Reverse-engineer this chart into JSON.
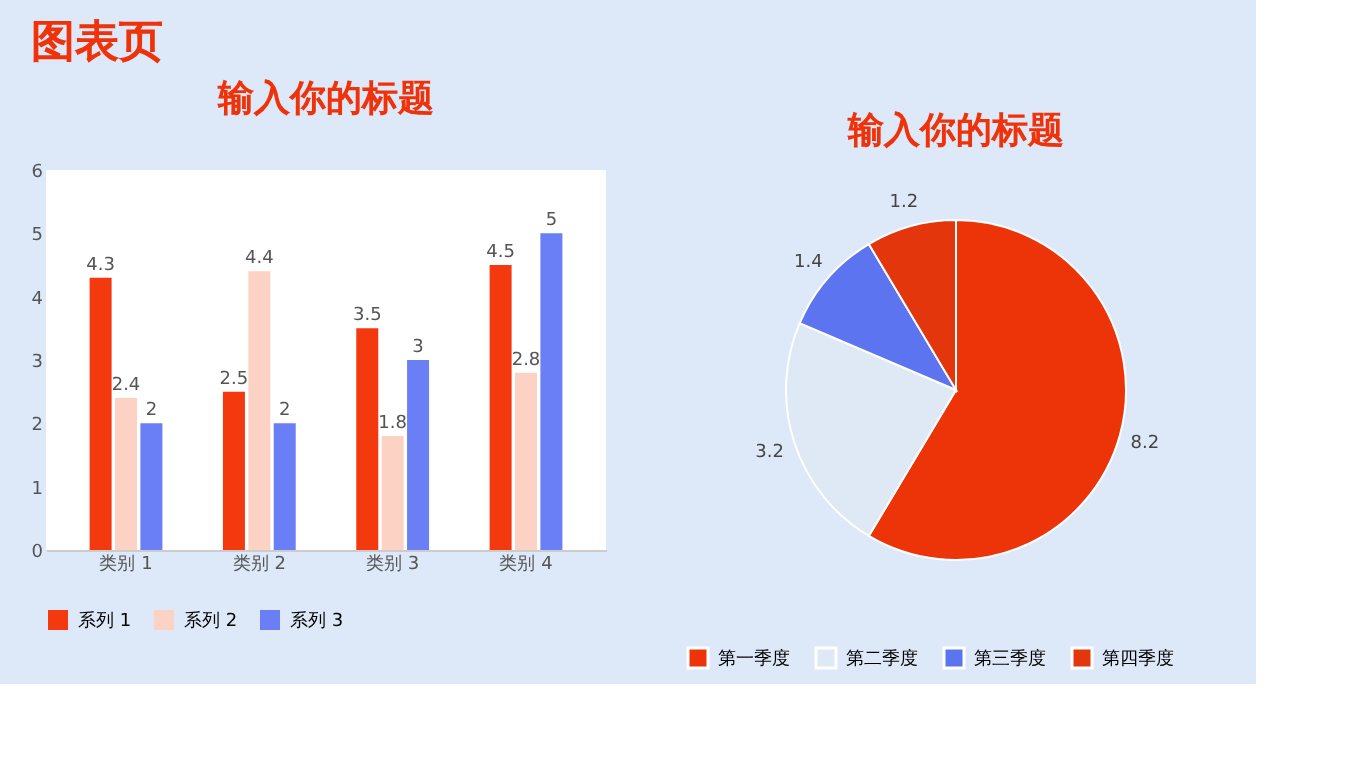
{
  "chart_data": [
    {
      "type": "bar",
      "title": "输入你的标题",
      "annotations": [
        "图表页"
      ],
      "categories": [
        "类别 1",
        "类别 2",
        "类别 3",
        "类别 4"
      ],
      "series": [
        {
          "name": "系列 1",
          "color": "#f5390f",
          "values": [
            4.3,
            2.5,
            3.5,
            4.5
          ]
        },
        {
          "name": "系列 2",
          "color": "#fcd2c5",
          "values": [
            2.4,
            4.4,
            1.8,
            2.8
          ]
        },
        {
          "name": "系列 3",
          "color": "#6a7ff6",
          "values": [
            2,
            2,
            3,
            5
          ]
        }
      ],
      "ylim": [
        0,
        6
      ],
      "yticks": [
        0,
        1,
        2,
        3,
        4,
        5,
        6
      ],
      "grid": false,
      "legend": "bottom",
      "data_labels": true
    },
    {
      "type": "pie",
      "title": "输入你的标题",
      "categories": [
        "第一季度",
        "第二季度",
        "第三季度",
        "第四季度"
      ],
      "values": [
        8.2,
        3.2,
        1.4,
        1.2
      ],
      "colors": [
        "#ec3408",
        "#dfe8f5",
        "#5d74f1",
        "#e3360c"
      ],
      "legend": "bottom",
      "data_labels": true
    }
  ]
}
